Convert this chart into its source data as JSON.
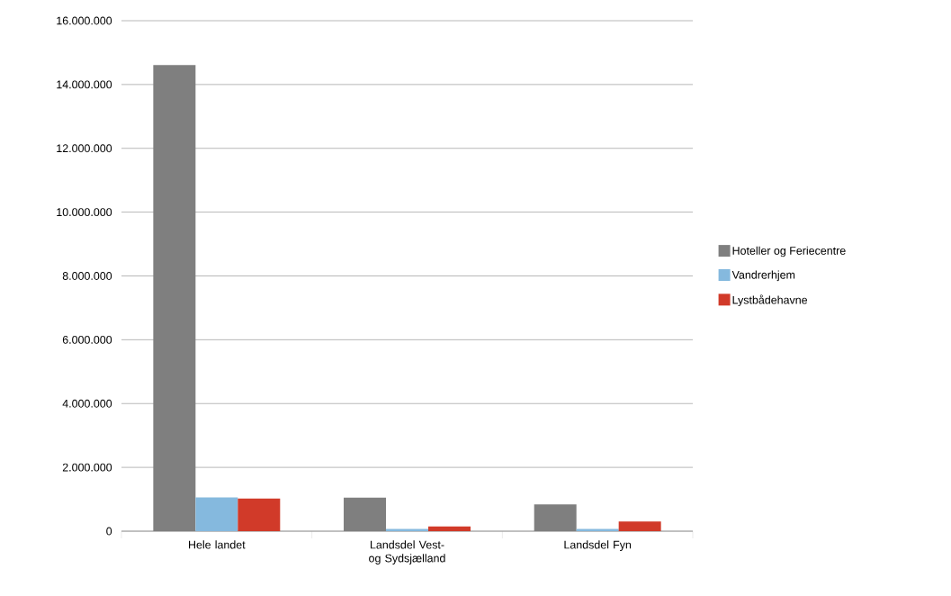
{
  "chart_data": {
    "type": "bar",
    "categories": [
      "Hele landet",
      "Landsdel Vest- og Sydsjælland",
      "Landsdel Fyn"
    ],
    "series": [
      {
        "name": "Hoteller og Feriecentre",
        "color": "#7f7f7f",
        "values": [
          14610000,
          1050000,
          840000
        ]
      },
      {
        "name": "Vandrerhjem",
        "color": "#85b9de",
        "values": [
          1060000,
          70000,
          70000
        ]
      },
      {
        "name": "Lystbådehavne",
        "color": "#d13a29",
        "values": [
          1020000,
          150000,
          300000
        ]
      }
    ],
    "ylim": [
      0,
      16000000
    ],
    "yticks": [
      {
        "value": 0,
        "label": "0"
      },
      {
        "value": 2000000,
        "label": "2.000.000"
      },
      {
        "value": 4000000,
        "label": "4.000.000"
      },
      {
        "value": 6000000,
        "label": "6.000.000"
      },
      {
        "value": 8000000,
        "label": "8.000.000"
      },
      {
        "value": 10000000,
        "label": "10.000.000"
      },
      {
        "value": 12000000,
        "label": "12.000.000"
      },
      {
        "value": 14000000,
        "label": "14.000.000"
      },
      {
        "value": 16000000,
        "label": "16.000.000"
      }
    ],
    "grid": "y",
    "legend": "right"
  }
}
